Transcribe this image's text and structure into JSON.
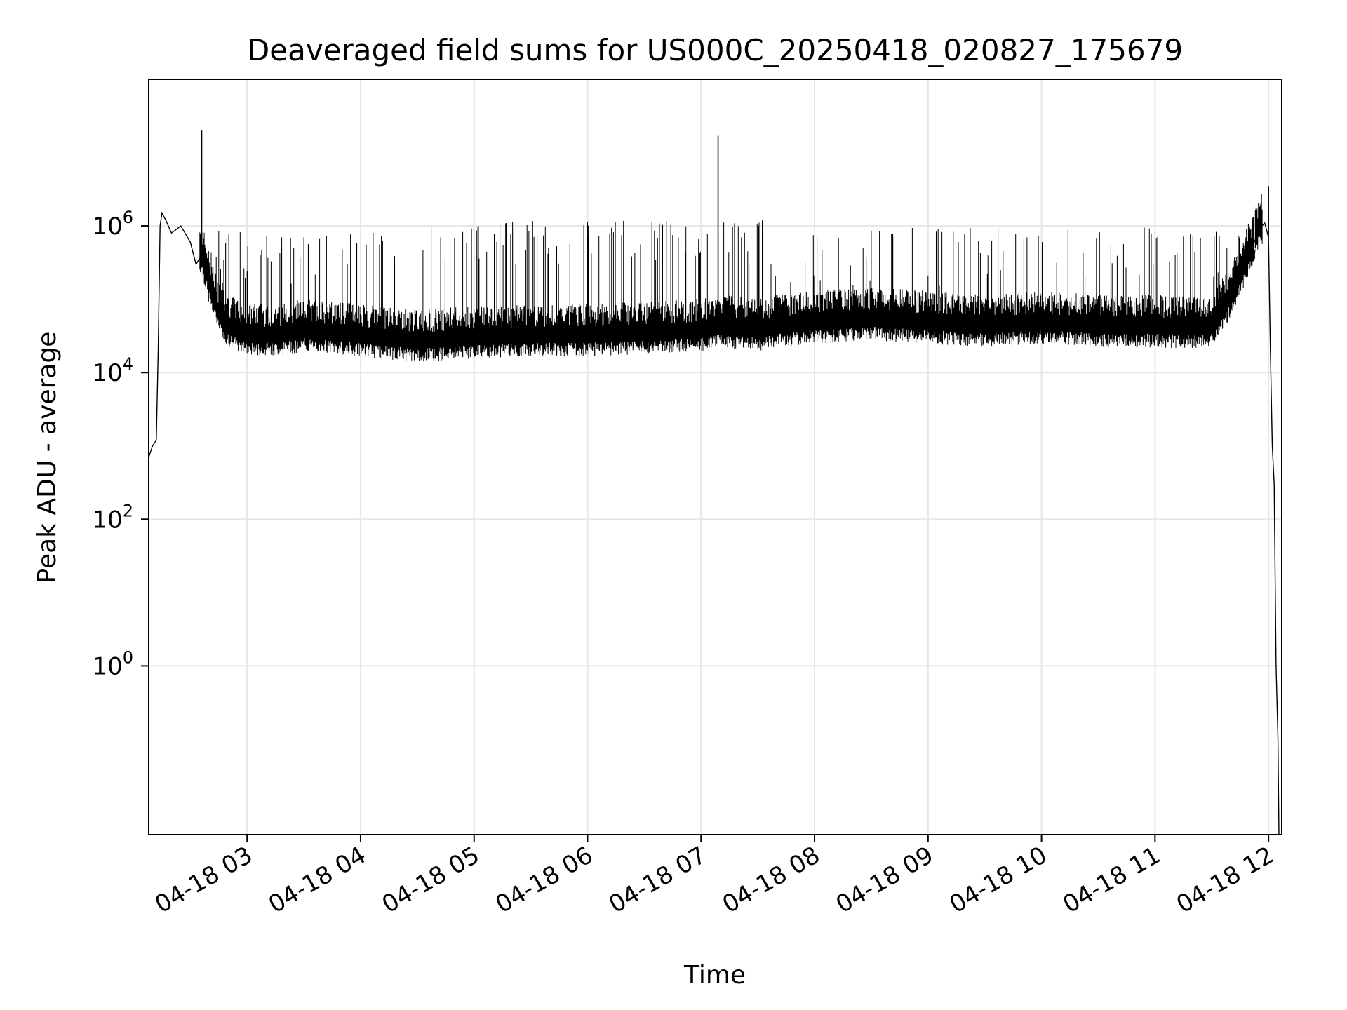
{
  "chart_data": {
    "type": "line",
    "title": "Deaveraged field sums for US000C_20250418_020827_175679",
    "xlabel": "Time",
    "ylabel": "Peak ADU - average",
    "yscale": "log",
    "ylim": [
      0.005,
      100000000
    ],
    "xlim": [
      "2025-04-18T02:08:00",
      "2025-04-18T12:07:00"
    ],
    "grid": true,
    "line_color": "#000000",
    "x_ticks": [
      {
        "value": "2025-04-18T03:00:00",
        "label": "04-18 03"
      },
      {
        "value": "2025-04-18T04:00:00",
        "label": "04-18 04"
      },
      {
        "value": "2025-04-18T05:00:00",
        "label": "04-18 05"
      },
      {
        "value": "2025-04-18T06:00:00",
        "label": "04-18 06"
      },
      {
        "value": "2025-04-18T07:00:00",
        "label": "04-18 07"
      },
      {
        "value": "2025-04-18T08:00:00",
        "label": "04-18 08"
      },
      {
        "value": "2025-04-18T09:00:00",
        "label": "04-18 09"
      },
      {
        "value": "2025-04-18T10:00:00",
        "label": "04-18 10"
      },
      {
        "value": "2025-04-18T11:00:00",
        "label": "04-18 11"
      },
      {
        "value": "2025-04-18T12:00:00",
        "label": "04-18 12"
      }
    ],
    "y_ticks": [
      {
        "value": 1,
        "base": "10",
        "exp": "0"
      },
      {
        "value": 100,
        "base": "10",
        "exp": "2"
      },
      {
        "value": 10000,
        "base": "10",
        "exp": "4"
      },
      {
        "value": 1000000,
        "base": "10",
        "exp": "6"
      }
    ],
    "series": [
      {
        "x": [
          "2025-04-18T02:08:00",
          "2025-04-18T02:10:00",
          "2025-04-18T02:12:00",
          "2025-04-18T02:13:00",
          "2025-04-18T02:14:00",
          "2025-04-18T02:15:00",
          "2025-04-18T02:17:00",
          "2025-04-18T02:20:00",
          "2025-04-18T02:25:00",
          "2025-04-18T02:30:00",
          "2025-04-18T02:33:00",
          "2025-04-18T02:36:00",
          "2025-04-18T02:40:00",
          "2025-04-18T02:45:00",
          "2025-04-18T02:50:00",
          "2025-04-18T02:55:00",
          "2025-04-18T03:00:00",
          "2025-04-18T03:15:00",
          "2025-04-18T03:30:00",
          "2025-04-18T04:00:00",
          "2025-04-18T04:30:00",
          "2025-04-18T05:00:00",
          "2025-04-18T05:30:00",
          "2025-04-18T06:00:00",
          "2025-04-18T06:30:00",
          "2025-04-18T07:00:00",
          "2025-04-18T07:10:00",
          "2025-04-18T07:30:00",
          "2025-04-18T07:40:00",
          "2025-04-18T08:00:00",
          "2025-04-18T08:30:00",
          "2025-04-18T09:00:00",
          "2025-04-18T09:30:00",
          "2025-04-18T10:00:00",
          "2025-04-18T10:30:00",
          "2025-04-18T11:00:00",
          "2025-04-18T11:15:00",
          "2025-04-18T11:30:00",
          "2025-04-18T11:40:00",
          "2025-04-18T11:50:00",
          "2025-04-18T11:55:00",
          "2025-04-18T11:58:00",
          "2025-04-18T12:00:00",
          "2025-04-18T12:01:00",
          "2025-04-18T12:02:00",
          "2025-04-18T12:03:00",
          "2025-04-18T12:04:00",
          "2025-04-18T12:05:00",
          "2025-04-18T12:05:30"
        ],
        "y": [
          700,
          1000,
          1200,
          20000,
          1000000,
          1500000,
          1200000,
          800000,
          1000000,
          600000,
          300000,
          400000,
          150000,
          60000,
          40000,
          35000,
          30000,
          30000,
          35000,
          30000,
          25000,
          28000,
          30000,
          30000,
          32000,
          35000,
          40000,
          35000,
          40000,
          45000,
          50000,
          45000,
          40000,
          45000,
          40000,
          40000,
          38000,
          40000,
          100000,
          400000,
          900000,
          1100000,
          700000,
          20000,
          1000,
          300,
          1,
          0.1,
          0.005
        ]
      }
    ],
    "spikes": [
      {
        "x": "2025-04-18T02:36:00",
        "y": 20000000
      },
      {
        "x": "2025-04-18T07:09:00",
        "y": 17000000
      },
      {
        "x": "2025-04-18T12:00:00",
        "y": 3500000
      },
      {
        "x": "2025-04-18T11:56:00",
        "y": 2000000
      }
    ]
  }
}
